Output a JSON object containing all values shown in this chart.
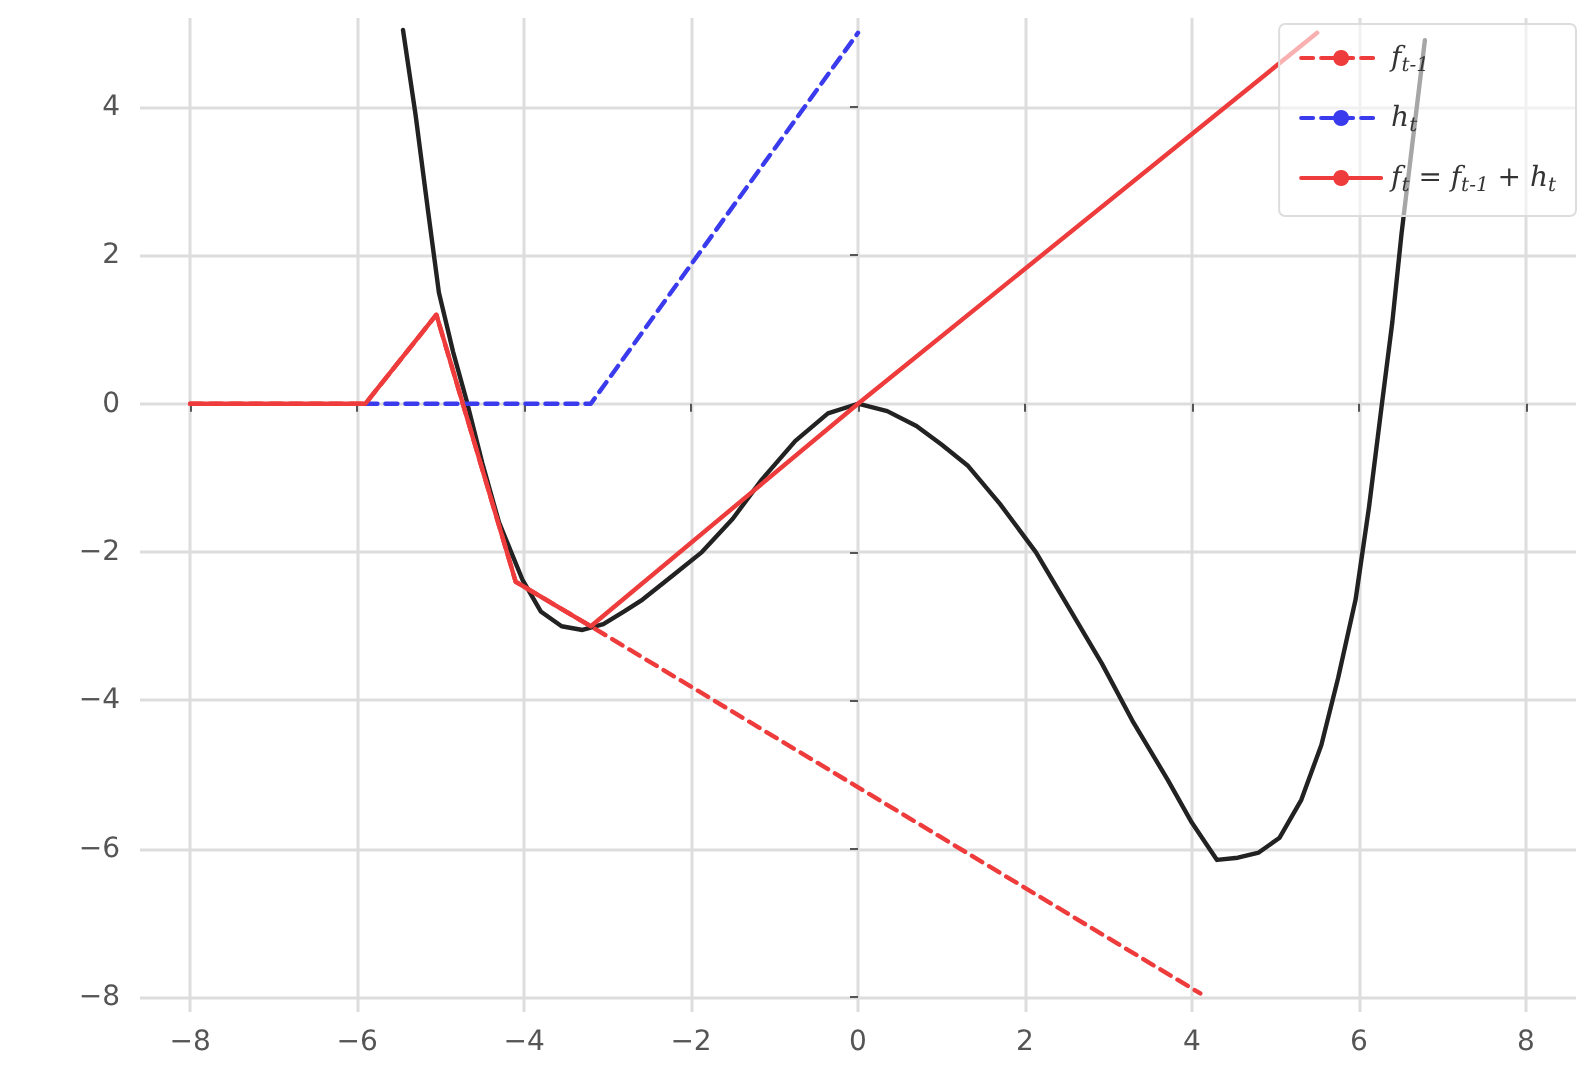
{
  "chart_data": {
    "type": "line",
    "xlim": [
      -8.6,
      8.6
    ],
    "ylim": [
      -8.2,
      5.2
    ],
    "xticks": [
      -8,
      -6,
      -4,
      -2,
      0,
      2,
      4,
      6,
      8
    ],
    "yticks": [
      -8,
      -6,
      -4,
      -2,
      0,
      2,
      4
    ],
    "grid": true,
    "legend": "top right",
    "marker": "none",
    "series": [
      {
        "color": "#222222",
        "line_style": "solid",
        "x": [
          -5.45,
          -5.3,
          -5.15,
          -5.02,
          -4.85,
          -4.69,
          -4.5,
          -4.3,
          -4.02,
          -3.8,
          -3.55,
          -3.3,
          -3.05,
          -2.8,
          -2.58,
          -2.2,
          -1.87,
          -1.5,
          -1.15,
          -0.75,
          -0.36,
          0,
          0.35,
          0.7,
          1.0,
          1.32,
          1.7,
          2.13,
          2.5,
          2.92,
          3.3,
          3.71,
          4.0,
          4.3,
          4.55,
          4.8,
          5.05,
          5.31,
          5.55,
          5.75,
          5.96,
          6.12,
          6.27,
          6.4,
          6.51,
          6.65,
          6.79
        ],
        "values": [
          5.04,
          3.9,
          2.6,
          1.5,
          0.7,
          0.05,
          -0.8,
          -1.6,
          -2.37,
          -2.8,
          -3.0,
          -3.05,
          -2.97,
          -2.8,
          -2.64,
          -2.3,
          -2.0,
          -1.55,
          -1.02,
          -0.5,
          -0.13,
          0,
          -0.1,
          -0.3,
          -0.55,
          -0.84,
          -1.35,
          -2.0,
          -2.7,
          -3.5,
          -4.3,
          -5.07,
          -5.65,
          -6.15,
          -6.12,
          -6.05,
          -5.85,
          -5.34,
          -4.6,
          -3.7,
          -2.64,
          -1.4,
          -0.05,
          1.1,
          2.29,
          3.6,
          4.9
        ]
      },
      {
        "name": "f$_{t-1}$",
        "color": "#ee3b3b",
        "line_style": "dashed",
        "x": [
          -8,
          -5.9,
          -5.05,
          -4.1,
          -3.2,
          4.1
        ],
        "values": [
          0,
          0,
          1.2,
          -2.4,
          -3.0,
          -7.95
        ]
      },
      {
        "name": "h$_{t}$",
        "color": "#3b3bee",
        "line_style": "dashed",
        "x": [
          -5.9,
          -3.2,
          0
        ],
        "values": [
          0,
          0,
          5.0
        ]
      },
      {
        "name": "f$_{t}$ = f$_{t-1}$ + h$_{t}$",
        "color": "#ee3b3b",
        "line_style": "solid",
        "x": [
          -8,
          -5.9,
          -5.05,
          -4.1,
          -3.2,
          0,
          5.5
        ],
        "values": [
          0,
          0,
          1.2,
          -2.4,
          -3.0,
          0,
          5.0
        ]
      }
    ]
  }
}
